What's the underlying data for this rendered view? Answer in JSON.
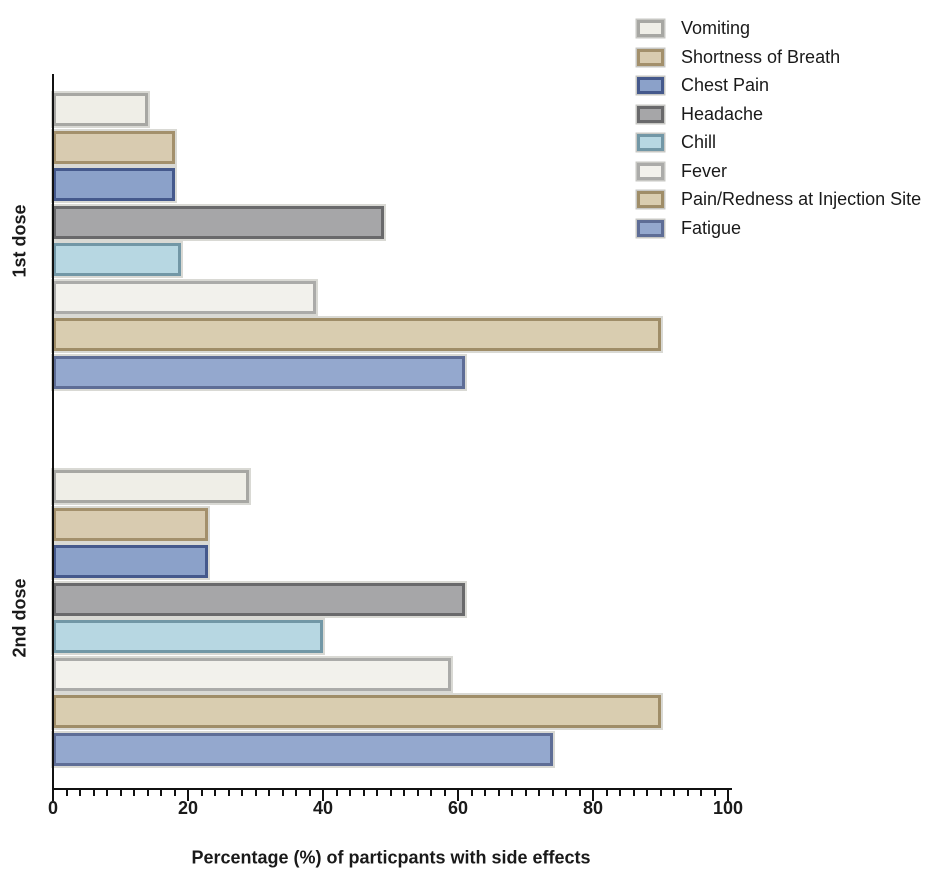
{
  "chart_data": {
    "type": "bar",
    "orientation": "horizontal",
    "title": "",
    "xlabel": "Percentage (%) of particpants with side effects",
    "ylabel": "",
    "xlim": [
      0,
      100
    ],
    "x_major_ticks": [
      0,
      20,
      40,
      60,
      80,
      100
    ],
    "x_major_tick_labels": [
      "0",
      "20",
      "40",
      "60",
      "80",
      "100"
    ],
    "x_minor_tick_step": 2,
    "grid": false,
    "legend_position": "top-right",
    "groups": [
      "1st dose",
      "2nd dose"
    ],
    "series": [
      {
        "name": "Vomiting",
        "fill": "#efeee7",
        "border": "#a7a7a3",
        "values": [
          14,
          29
        ]
      },
      {
        "name": "Shortness of Breath",
        "fill": "#d8cbb0",
        "border": "#a3906c",
        "values": [
          18,
          23
        ]
      },
      {
        "name": "Chest Pain",
        "fill": "#8ba1c9",
        "border": "#45598c",
        "values": [
          18,
          23
        ]
      },
      {
        "name": "Headache",
        "fill": "#a6a6a8",
        "border": "#69696b",
        "values": [
          49,
          61
        ]
      },
      {
        "name": "Chill",
        "fill": "#b7d7e2",
        "border": "#7297a6",
        "values": [
          19,
          40
        ]
      },
      {
        "name": "Fever",
        "fill": "#f2f1ec",
        "border": "#ababa9",
        "values": [
          39,
          59
        ]
      },
      {
        "name": "Pain/Redness at Injection Site",
        "fill": "#d9cdb0",
        "border": "#9f8d68",
        "values": [
          90,
          90
        ]
      },
      {
        "name": "Fatigue",
        "fill": "#94a8ce",
        "border": "#5e6d96",
        "values": [
          61,
          74
        ]
      }
    ]
  },
  "colors": {
    "axis": "#111111",
    "text": "#1a1a1a",
    "background": "#ffffff",
    "bar_halo": "#d9d9d4"
  }
}
